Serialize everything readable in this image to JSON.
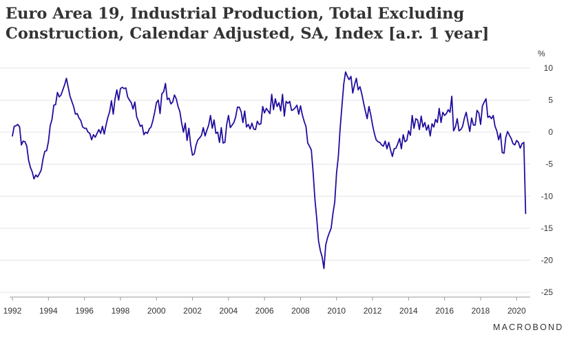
{
  "title_lines": [
    "Euro Area 19, Industrial Production, Total Excluding",
    "Construction, Calendar Adjusted, SA, Index [a.r. 1 year]"
  ],
  "unit_label": "%",
  "brand": "MACROBOND",
  "colors": {
    "line": "#1f0d9e",
    "grid": "#e3e3e3",
    "axis": "#999999",
    "text": "#333333"
  },
  "chart_data": {
    "type": "line",
    "title": "Euro Area 19, Industrial Production, Total Excluding Construction, Calendar Adjusted, SA, Index [a.r. 1 year]",
    "ylabel": "%",
    "xlim": [
      1992.0,
      2020.6
    ],
    "ylim": [
      -25,
      10
    ],
    "grid": true,
    "y_axis_side": "right",
    "x_ticks": [
      "1992",
      "1994",
      "1996",
      "1998",
      "2000",
      "2002",
      "2004",
      "2006",
      "2008",
      "2010",
      "2012",
      "2014",
      "2016",
      "2018",
      "2020"
    ],
    "y_ticks": [
      10,
      5,
      0,
      -5,
      -10,
      -15,
      -20,
      -25
    ],
    "series": [
      {
        "name": "",
        "points": [
          [
            1992.0,
            -0.6
          ],
          [
            1992.1,
            0.9
          ],
          [
            1992.2,
            1.0
          ],
          [
            1992.3,
            1.2
          ],
          [
            1992.4,
            0.8
          ],
          [
            1992.5,
            -2.0
          ],
          [
            1992.6,
            -1.4
          ],
          [
            1992.7,
            -1.5
          ],
          [
            1992.8,
            -2.2
          ],
          [
            1992.9,
            -4.4
          ],
          [
            1993.0,
            -5.5
          ],
          [
            1993.1,
            -6.2
          ],
          [
            1993.2,
            -7.3
          ],
          [
            1993.3,
            -6.7
          ],
          [
            1993.4,
            -7.0
          ],
          [
            1993.5,
            -6.5
          ],
          [
            1993.6,
            -5.9
          ],
          [
            1993.7,
            -4.2
          ],
          [
            1993.8,
            -3.0
          ],
          [
            1993.9,
            -2.9
          ],
          [
            1994.0,
            -1.5
          ],
          [
            1994.1,
            1.0
          ],
          [
            1994.2,
            2.0
          ],
          [
            1994.3,
            4.2
          ],
          [
            1994.4,
            4.3
          ],
          [
            1994.5,
            6.2
          ],
          [
            1994.6,
            5.5
          ],
          [
            1994.7,
            5.8
          ],
          [
            1994.8,
            6.6
          ],
          [
            1994.9,
            7.4
          ],
          [
            1995.0,
            8.4
          ],
          [
            1995.1,
            7.0
          ],
          [
            1995.2,
            5.6
          ],
          [
            1995.3,
            4.8
          ],
          [
            1995.4,
            4.0
          ],
          [
            1995.5,
            2.8
          ],
          [
            1995.6,
            2.9
          ],
          [
            1995.7,
            2.2
          ],
          [
            1995.8,
            1.8
          ],
          [
            1995.9,
            0.8
          ],
          [
            1996.0,
            0.6
          ],
          [
            1996.1,
            0.6
          ],
          [
            1996.2,
            0.0
          ],
          [
            1996.3,
            -0.2
          ],
          [
            1996.4,
            -1.2
          ],
          [
            1996.5,
            -0.4
          ],
          [
            1996.6,
            -0.8
          ],
          [
            1996.7,
            -0.2
          ],
          [
            1996.8,
            0.4
          ],
          [
            1996.9,
            -0.2
          ],
          [
            1997.0,
            0.9
          ],
          [
            1997.1,
            -0.3
          ],
          [
            1997.2,
            1.1
          ],
          [
            1997.3,
            2.3
          ],
          [
            1997.4,
            3.2
          ],
          [
            1997.5,
            4.9
          ],
          [
            1997.6,
            2.8
          ],
          [
            1997.7,
            5.2
          ],
          [
            1997.8,
            6.6
          ],
          [
            1997.9,
            5.0
          ],
          [
            1998.0,
            6.8
          ],
          [
            1998.1,
            7.0
          ],
          [
            1998.2,
            6.8
          ],
          [
            1998.3,
            6.9
          ],
          [
            1998.4,
            5.5
          ],
          [
            1998.5,
            5.0
          ],
          [
            1998.6,
            4.6
          ],
          [
            1998.7,
            3.6
          ],
          [
            1998.8,
            4.7
          ],
          [
            1998.9,
            2.4
          ],
          [
            1999.0,
            1.7
          ],
          [
            1999.1,
            0.9
          ],
          [
            1999.2,
            1.1
          ],
          [
            1999.3,
            -0.4
          ],
          [
            1999.4,
            0.0
          ],
          [
            1999.5,
            -0.2
          ],
          [
            1999.6,
            0.5
          ],
          [
            1999.7,
            0.8
          ],
          [
            1999.8,
            1.8
          ],
          [
            1999.9,
            3.1
          ],
          [
            2000.0,
            4.6
          ],
          [
            2000.1,
            5.0
          ],
          [
            2000.2,
            2.9
          ],
          [
            2000.3,
            6.0
          ],
          [
            2000.4,
            6.3
          ],
          [
            2000.5,
            7.6
          ],
          [
            2000.6,
            5.1
          ],
          [
            2000.7,
            5.3
          ],
          [
            2000.8,
            4.4
          ],
          [
            2000.9,
            4.7
          ],
          [
            2001.0,
            5.8
          ],
          [
            2001.1,
            5.2
          ],
          [
            2001.2,
            4.0
          ],
          [
            2001.3,
            3.2
          ],
          [
            2001.4,
            1.4
          ],
          [
            2001.5,
            0.0
          ],
          [
            2001.6,
            1.4
          ],
          [
            2001.7,
            -1.3
          ],
          [
            2001.8,
            0.6
          ],
          [
            2001.9,
            -2.0
          ],
          [
            2002.0,
            -3.6
          ],
          [
            2002.1,
            -3.4
          ],
          [
            2002.2,
            -2.0
          ],
          [
            2002.3,
            -1.2
          ],
          [
            2002.4,
            -0.9
          ],
          [
            2002.5,
            -0.5
          ],
          [
            2002.6,
            0.7
          ],
          [
            2002.7,
            -0.6
          ],
          [
            2002.8,
            0.3
          ],
          [
            2002.9,
            1.1
          ],
          [
            2003.0,
            2.6
          ],
          [
            2003.1,
            0.6
          ],
          [
            2003.2,
            1.9
          ],
          [
            2003.3,
            -0.2
          ],
          [
            2003.4,
            0.0
          ],
          [
            2003.5,
            -1.6
          ],
          [
            2003.6,
            0.7
          ],
          [
            2003.7,
            -1.7
          ],
          [
            2003.8,
            -1.6
          ],
          [
            2003.9,
            1.2
          ],
          [
            2004.0,
            2.6
          ],
          [
            2004.1,
            0.7
          ],
          [
            2004.2,
            1.1
          ],
          [
            2004.3,
            1.5
          ],
          [
            2004.4,
            2.4
          ],
          [
            2004.5,
            3.9
          ],
          [
            2004.6,
            3.9
          ],
          [
            2004.7,
            3.2
          ],
          [
            2004.8,
            1.5
          ],
          [
            2004.9,
            3.3
          ],
          [
            2005.0,
            0.8
          ],
          [
            2005.1,
            1.2
          ],
          [
            2005.2,
            0.5
          ],
          [
            2005.3,
            1.4
          ],
          [
            2005.4,
            0.5
          ],
          [
            2005.5,
            0.4
          ],
          [
            2005.6,
            1.7
          ],
          [
            2005.7,
            1.2
          ],
          [
            2005.8,
            1.3
          ],
          [
            2005.9,
            4.0
          ],
          [
            2006.0,
            3.0
          ],
          [
            2006.1,
            3.7
          ],
          [
            2006.2,
            3.3
          ],
          [
            2006.3,
            2.9
          ],
          [
            2006.4,
            5.9
          ],
          [
            2006.5,
            3.5
          ],
          [
            2006.6,
            5.2
          ],
          [
            2006.7,
            4.0
          ],
          [
            2006.8,
            4.6
          ],
          [
            2006.9,
            3.3
          ],
          [
            2007.0,
            5.9
          ],
          [
            2007.1,
            2.5
          ],
          [
            2007.2,
            4.8
          ],
          [
            2007.3,
            4.5
          ],
          [
            2007.4,
            4.8
          ],
          [
            2007.5,
            3.4
          ],
          [
            2007.6,
            3.5
          ],
          [
            2007.7,
            3.8
          ],
          [
            2007.8,
            4.2
          ],
          [
            2007.9,
            2.8
          ],
          [
            2008.0,
            4.1
          ],
          [
            2008.1,
            2.7
          ],
          [
            2008.2,
            1.7
          ],
          [
            2008.3,
            0.9
          ],
          [
            2008.4,
            -1.7
          ],
          [
            2008.5,
            -2.2
          ],
          [
            2008.6,
            -2.8
          ],
          [
            2008.7,
            -6.3
          ],
          [
            2008.8,
            -10.5
          ],
          [
            2008.9,
            -13.5
          ],
          [
            2009.0,
            -17.0
          ],
          [
            2009.1,
            -18.5
          ],
          [
            2009.2,
            -19.5
          ],
          [
            2009.3,
            -21.3
          ],
          [
            2009.4,
            -17.6
          ],
          [
            2009.5,
            -16.5
          ],
          [
            2009.6,
            -15.7
          ],
          [
            2009.7,
            -15.0
          ],
          [
            2009.8,
            -12.7
          ],
          [
            2009.9,
            -10.9
          ],
          [
            2010.0,
            -6.4
          ],
          [
            2010.1,
            -3.8
          ],
          [
            2010.2,
            0.6
          ],
          [
            2010.3,
            4.1
          ],
          [
            2010.4,
            7.5
          ],
          [
            2010.5,
            9.4
          ],
          [
            2010.6,
            8.7
          ],
          [
            2010.7,
            8.2
          ],
          [
            2010.8,
            8.7
          ],
          [
            2010.9,
            6.1
          ],
          [
            2011.0,
            7.4
          ],
          [
            2011.1,
            8.4
          ],
          [
            2011.2,
            6.6
          ],
          [
            2011.3,
            7.1
          ],
          [
            2011.4,
            6.0
          ],
          [
            2011.5,
            4.6
          ],
          [
            2011.6,
            3.3
          ],
          [
            2011.7,
            2.1
          ],
          [
            2011.8,
            4.0
          ],
          [
            2011.9,
            2.7
          ],
          [
            2012.0,
            1.1
          ],
          [
            2012.1,
            -0.2
          ],
          [
            2012.2,
            -1.2
          ],
          [
            2012.3,
            -1.5
          ],
          [
            2012.4,
            -1.6
          ],
          [
            2012.5,
            -2.0
          ],
          [
            2012.6,
            -2.2
          ],
          [
            2012.7,
            -1.4
          ],
          [
            2012.8,
            -2.6
          ],
          [
            2012.9,
            -1.6
          ],
          [
            2013.0,
            -2.8
          ],
          [
            2013.1,
            -3.8
          ],
          [
            2013.2,
            -2.6
          ],
          [
            2013.3,
            -2.5
          ],
          [
            2013.4,
            -1.8
          ],
          [
            2013.5,
            -1.0
          ],
          [
            2013.6,
            -2.6
          ],
          [
            2013.7,
            -0.4
          ],
          [
            2013.8,
            -1.5
          ],
          [
            2013.9,
            -1.3
          ],
          [
            2014.0,
            0.2
          ],
          [
            2014.1,
            -0.5
          ],
          [
            2014.2,
            2.6
          ],
          [
            2014.3,
            0.6
          ],
          [
            2014.4,
            2.1
          ],
          [
            2014.5,
            1.9
          ],
          [
            2014.6,
            0.4
          ],
          [
            2014.7,
            2.5
          ],
          [
            2014.8,
            0.8
          ],
          [
            2014.9,
            1.5
          ],
          [
            2015.0,
            0.3
          ],
          [
            2015.1,
            1.1
          ],
          [
            2015.2,
            -0.6
          ],
          [
            2015.3,
            1.3
          ],
          [
            2015.4,
            0.8
          ],
          [
            2015.5,
            2.0
          ],
          [
            2015.6,
            1.5
          ],
          [
            2015.7,
            3.7
          ],
          [
            2015.8,
            1.5
          ],
          [
            2015.9,
            3.1
          ],
          [
            2016.0,
            2.6
          ],
          [
            2016.1,
            2.9
          ],
          [
            2016.2,
            3.5
          ],
          [
            2016.3,
            3.1
          ],
          [
            2016.4,
            5.6
          ],
          [
            2016.5,
            0.2
          ],
          [
            2016.6,
            0.8
          ],
          [
            2016.7,
            2.1
          ],
          [
            2016.8,
            0.2
          ],
          [
            2016.9,
            0.4
          ],
          [
            2017.0,
            0.9
          ],
          [
            2017.1,
            2.2
          ],
          [
            2017.2,
            3.1
          ],
          [
            2017.3,
            1.5
          ],
          [
            2017.4,
            0.1
          ],
          [
            2017.5,
            2.2
          ],
          [
            2017.6,
            1.1
          ],
          [
            2017.7,
            1.1
          ],
          [
            2017.8,
            3.4
          ],
          [
            2017.9,
            3.0
          ],
          [
            2018.0,
            1.2
          ],
          [
            2018.1,
            4.1
          ],
          [
            2018.2,
            4.7
          ],
          [
            2018.3,
            5.2
          ],
          [
            2018.4,
            2.3
          ],
          [
            2018.5,
            2.5
          ],
          [
            2018.6,
            2.1
          ],
          [
            2018.7,
            2.6
          ],
          [
            2018.8,
            0.9
          ],
          [
            2018.9,
            0.2
          ],
          [
            2019.0,
            -1.2
          ],
          [
            2019.1,
            -0.2
          ],
          [
            2019.2,
            -3.2
          ],
          [
            2019.3,
            -3.3
          ],
          [
            2019.4,
            -0.8
          ],
          [
            2019.5,
            0.1
          ],
          [
            2019.6,
            -0.5
          ],
          [
            2019.7,
            -1.0
          ],
          [
            2019.8,
            -1.8
          ],
          [
            2019.9,
            -2.0
          ],
          [
            2020.0,
            -1.3
          ],
          [
            2020.1,
            -1.6
          ],
          [
            2020.2,
            -2.5
          ],
          [
            2020.3,
            -1.8
          ],
          [
            2020.4,
            -1.6
          ],
          [
            2020.5,
            -12.7
          ]
        ]
      }
    ]
  }
}
